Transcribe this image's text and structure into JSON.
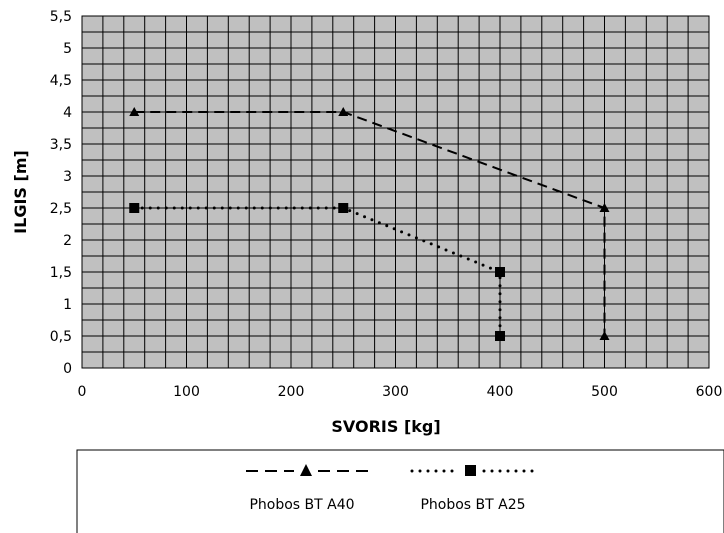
{
  "chart_data": {
    "type": "line",
    "title": "",
    "xlabel": "SVORIS [kg]",
    "ylabel": "ILGIS [m]",
    "xlim": [
      0,
      600
    ],
    "ylim": [
      0,
      5.5
    ],
    "x_ticks": [
      0,
      100,
      200,
      300,
      400,
      500,
      600
    ],
    "x_tick_labels": [
      "0",
      "100",
      "200",
      "300",
      "400",
      "500",
      "600"
    ],
    "y_ticks": [
      0,
      0.5,
      1,
      1.5,
      2,
      2.5,
      3,
      3.5,
      4,
      4.5,
      5,
      5.5
    ],
    "y_tick_labels": [
      "0",
      "0,5",
      "1",
      "1,5",
      "2",
      "2,5",
      "3",
      "3,5",
      "4",
      "4,5",
      "5",
      "5,5"
    ],
    "grid": true,
    "plot_background": "#c0c0c0",
    "legend_position": "bottom",
    "series": [
      {
        "name": "Phobos BT A40",
        "line_style": "dashed",
        "marker": "triangle",
        "color": "#000000",
        "x": [
          50,
          250,
          500,
          500
        ],
        "y": [
          4,
          4,
          2.5,
          0.5
        ]
      },
      {
        "name": "Phobos BT A25",
        "line_style": "dotted",
        "marker": "square",
        "color": "#000000",
        "x": [
          50,
          250,
          400,
          400
        ],
        "y": [
          2.5,
          2.5,
          1.5,
          0.5
        ]
      }
    ]
  }
}
